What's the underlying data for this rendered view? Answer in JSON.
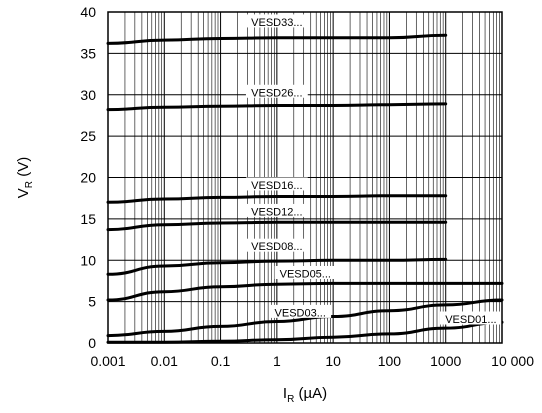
{
  "chart_data": {
    "type": "line",
    "x_scale": "log",
    "xlim": [
      0.001,
      10000
    ],
    "ylim": [
      0,
      40
    ],
    "grid": true,
    "xlabel": {
      "main": "I",
      "sub": "R",
      "unit": " (µA)"
    },
    "ylabel": {
      "main": "V",
      "sub": "R",
      "unit": " (V)"
    },
    "x_ticks": [
      {
        "value": 0.001,
        "label": "0.001"
      },
      {
        "value": 0.01,
        "label": "0.01"
      },
      {
        "value": 0.1,
        "label": "0.1"
      },
      {
        "value": 1,
        "label": "1"
      },
      {
        "value": 10,
        "label": "10"
      },
      {
        "value": 100,
        "label": "100"
      },
      {
        "value": 1000,
        "label": "1000"
      },
      {
        "value": 10000,
        "label": "10 000"
      }
    ],
    "y_ticks": [
      {
        "value": 0,
        "label": "0"
      },
      {
        "value": 5,
        "label": "5"
      },
      {
        "value": 10,
        "label": "10"
      },
      {
        "value": 15,
        "label": "15"
      },
      {
        "value": 20,
        "label": "20"
      },
      {
        "value": 25,
        "label": "25"
      },
      {
        "value": 30,
        "label": "30"
      },
      {
        "value": 35,
        "label": "35"
      },
      {
        "value": 40,
        "label": "40"
      }
    ],
    "series": [
      {
        "name": "VESD33...",
        "label_at": [
          1,
          38.8
        ],
        "points": [
          [
            0.001,
            36.2
          ],
          [
            0.01,
            36.6
          ],
          [
            0.1,
            36.8
          ],
          [
            1,
            36.9
          ],
          [
            10,
            36.9
          ],
          [
            100,
            36.9
          ],
          [
            1000,
            37.2
          ]
        ]
      },
      {
        "name": "VESD26...",
        "label_at": [
          1,
          30.3
        ],
        "points": [
          [
            0.001,
            28.2
          ],
          [
            0.01,
            28.5
          ],
          [
            0.1,
            28.6
          ],
          [
            1,
            28.7
          ],
          [
            10,
            28.7
          ],
          [
            100,
            28.8
          ],
          [
            1000,
            28.9
          ]
        ]
      },
      {
        "name": "VESD16...",
        "label_at": [
          1,
          19.1
        ],
        "points": [
          [
            0.001,
            17.0
          ],
          [
            0.01,
            17.4
          ],
          [
            0.1,
            17.6
          ],
          [
            1,
            17.7
          ],
          [
            10,
            17.7
          ],
          [
            100,
            17.8
          ],
          [
            1000,
            17.8
          ]
        ]
      },
      {
        "name": "VESD12...",
        "label_at": [
          1,
          15.9
        ],
        "points": [
          [
            0.001,
            13.7
          ],
          [
            0.01,
            14.3
          ],
          [
            0.1,
            14.5
          ],
          [
            1,
            14.6
          ],
          [
            10,
            14.6
          ],
          [
            100,
            14.6
          ],
          [
            1000,
            14.6
          ]
        ]
      },
      {
        "name": "VESD08...",
        "label_at": [
          1,
          11.7
        ],
        "points": [
          [
            0.001,
            8.3
          ],
          [
            0.01,
            9.3
          ],
          [
            0.1,
            9.7
          ],
          [
            1,
            9.9
          ],
          [
            10,
            10.0
          ],
          [
            100,
            10.0
          ],
          [
            1000,
            10.1
          ]
        ]
      },
      {
        "name": "VESD05...",
        "label_at": [
          3.2,
          8.4
        ],
        "points": [
          [
            0.001,
            5.2
          ],
          [
            0.01,
            6.2
          ],
          [
            0.1,
            6.8
          ],
          [
            1,
            7.1
          ],
          [
            10,
            7.2
          ],
          [
            100,
            7.2
          ],
          [
            1000,
            7.2
          ],
          [
            10000,
            7.2
          ]
        ]
      },
      {
        "name": "VESD03...",
        "label_at": [
          2.6,
          3.7
        ],
        "points": [
          [
            0.001,
            0.9
          ],
          [
            0.01,
            1.4
          ],
          [
            0.1,
            2.0
          ],
          [
            1,
            2.6
          ],
          [
            10,
            3.2
          ],
          [
            100,
            3.9
          ],
          [
            1000,
            4.6
          ],
          [
            10000,
            5.2
          ]
        ]
      },
      {
        "name": "VESD01...",
        "label_at": [
          2800,
          2.9
        ],
        "points": [
          [
            0.001,
            0.1
          ],
          [
            0.01,
            0.1
          ],
          [
            0.1,
            0.2
          ],
          [
            1,
            0.4
          ],
          [
            10,
            0.7
          ],
          [
            100,
            1.1
          ],
          [
            1000,
            1.8
          ],
          [
            10000,
            2.5
          ]
        ]
      }
    ]
  }
}
